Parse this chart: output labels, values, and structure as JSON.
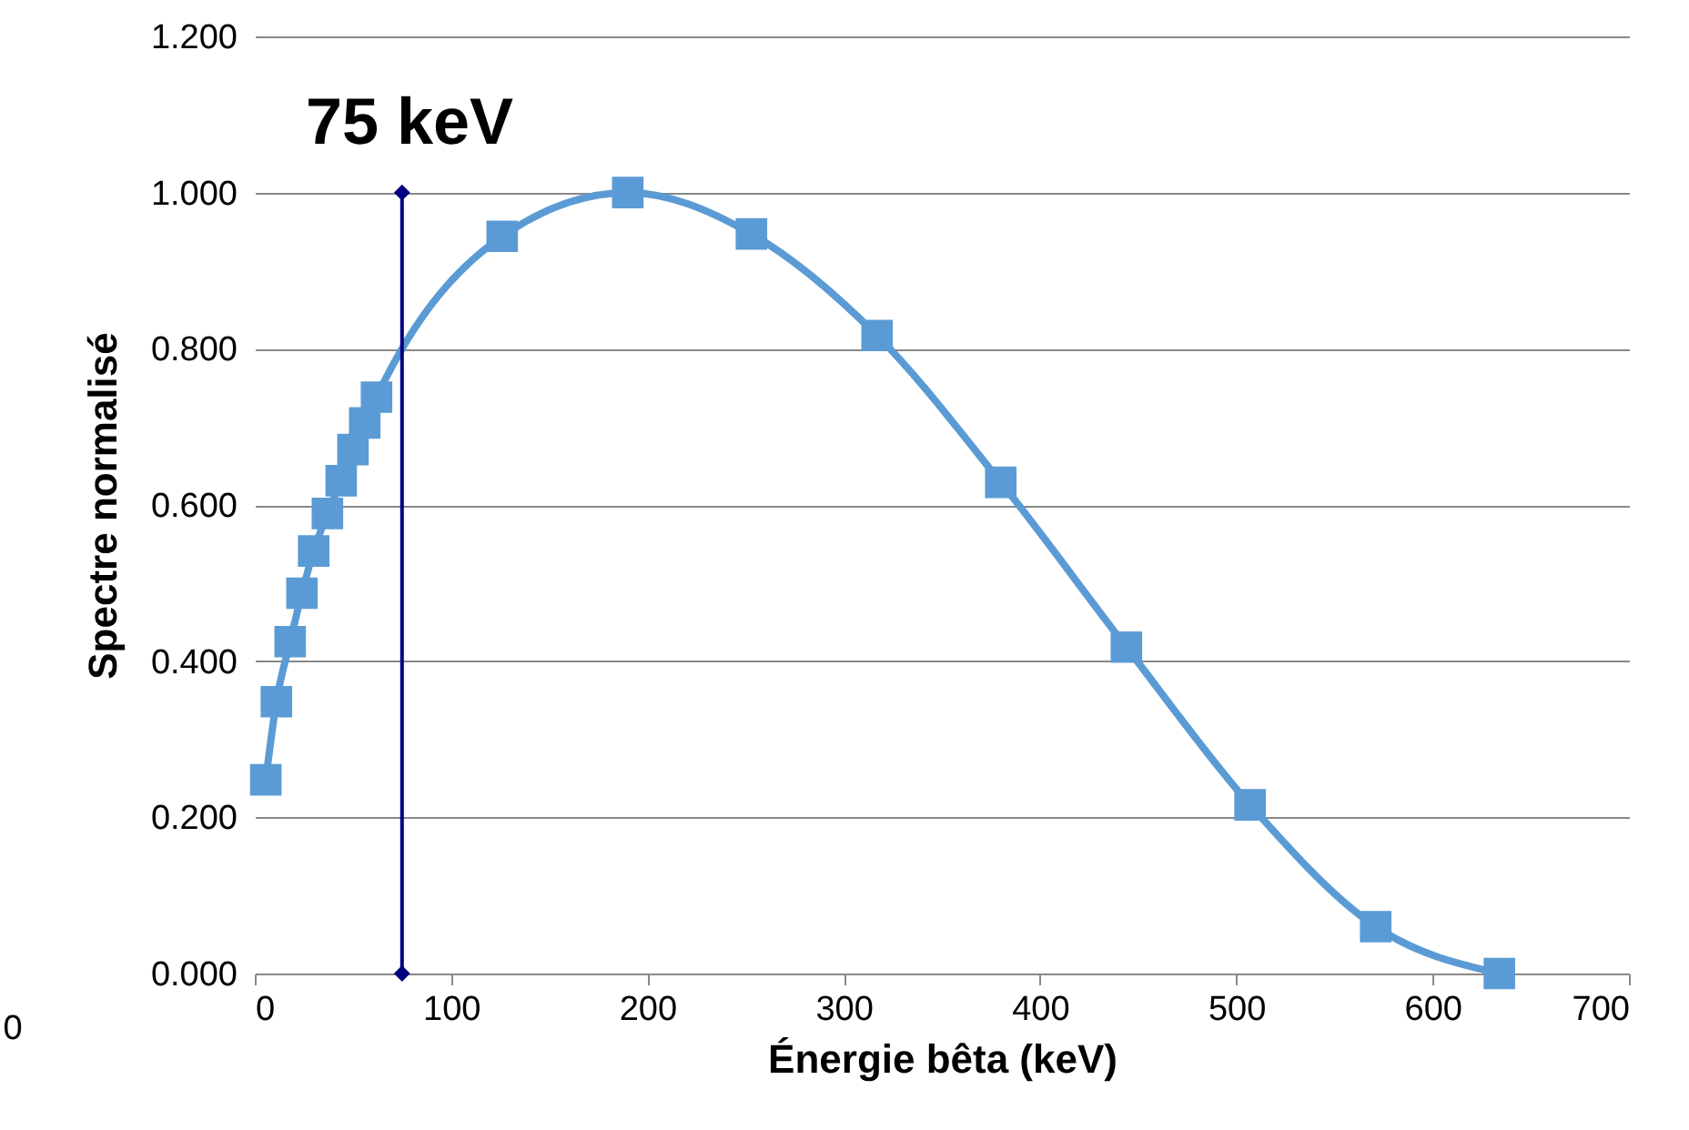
{
  "chart_data": {
    "type": "line",
    "xlabel": "Énergie bêta (keV)",
    "ylabel": "Spectre normalisé",
    "xlim": [
      0,
      700
    ],
    "xticks": [
      0,
      100,
      200,
      300,
      400,
      500,
      600,
      700
    ],
    "ylim": [
      0,
      1.2
    ],
    "yticks": [
      {
        "value": 0,
        "label": "0.000"
      },
      {
        "value": 0.2,
        "label": "0.200"
      },
      {
        "value": 0.4,
        "label": "0.400"
      },
      {
        "value": 0.6,
        "label": "0.600"
      },
      {
        "value": 0.8,
        "label": "0.800"
      },
      {
        "value": 1.0,
        "label": "1.000"
      },
      {
        "value": 1.2,
        "label": "1.200"
      }
    ],
    "grid": "y",
    "line_style": "solid",
    "series": [
      {
        "color": "#5b9bd5",
        "marker": "square",
        "x": [
          5.6,
          11,
          18,
          24,
          30,
          37,
          44,
          50,
          56,
          62,
          126,
          190,
          253,
          317,
          380,
          444,
          507,
          571,
          634
        ],
        "values": [
          0.248,
          0.348,
          0.425,
          0.487,
          0.541,
          0.589,
          0.631,
          0.671,
          0.705,
          0.738,
          0.944,
          1.0,
          0.947,
          0.817,
          0.629,
          0.418,
          0.216,
          0.06,
          0.0
        ]
      },
      {
        "color": "#000080",
        "marker": "diamond",
        "x": [
          75,
          75
        ],
        "values": [
          0,
          1.0
        ]
      }
    ],
    "annotations": [
      "75 keV",
      "0"
    ]
  }
}
